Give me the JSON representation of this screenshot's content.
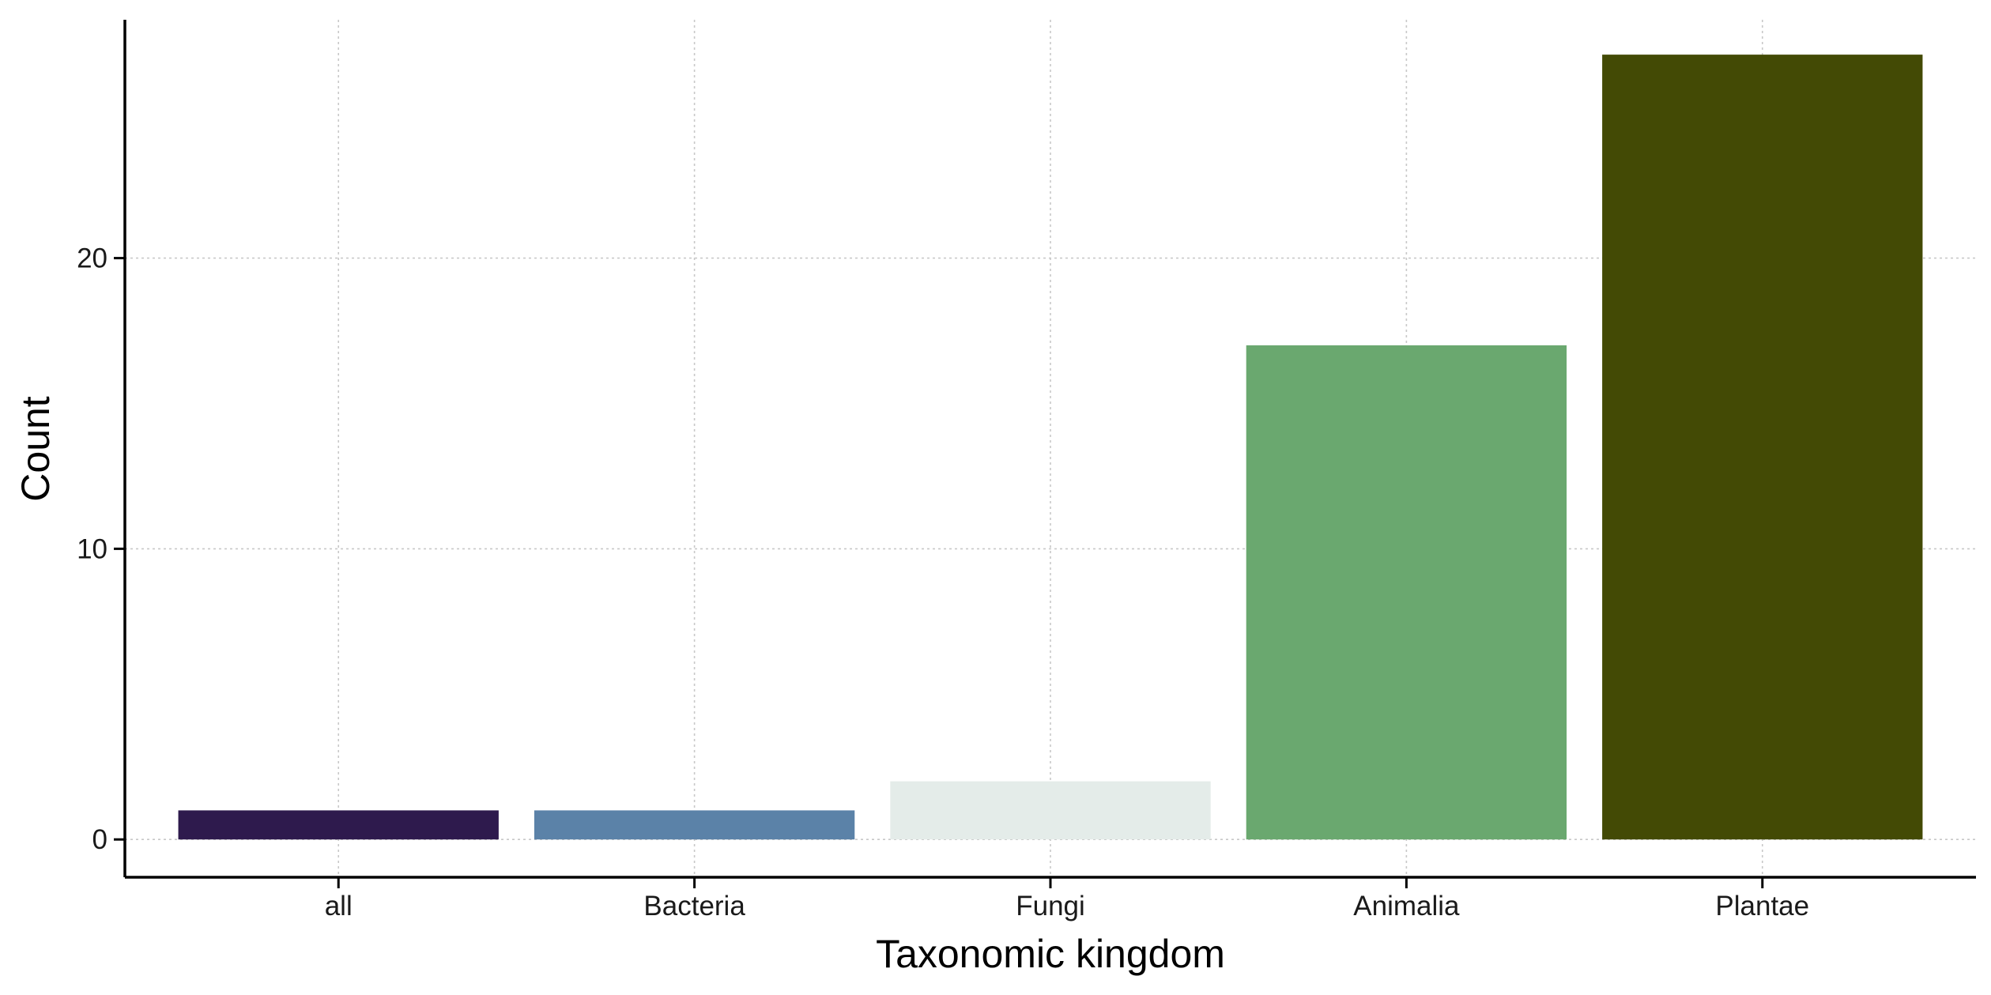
{
  "chart_data": {
    "type": "bar",
    "title": "",
    "xlabel": "Taxonomic kingdom",
    "ylabel": "Count",
    "categories": [
      "all",
      "Bacteria",
      "Fungi",
      "Animalia",
      "Plantae"
    ],
    "values": [
      1,
      1,
      2,
      17,
      27
    ],
    "colors": [
      "#2e1a4d",
      "#5b82a8",
      "#e4ece9",
      "#6aa86f",
      "#434a05"
    ],
    "ylim": [
      -1.3,
      28.2
    ],
    "yticks": [
      0,
      10,
      20
    ],
    "grid": "dotted major gridlines on both axes",
    "legend": "none"
  }
}
